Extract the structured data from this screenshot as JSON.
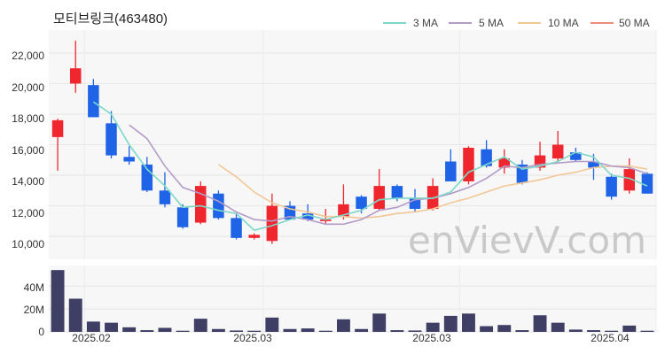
{
  "title": "모티브링크(463480)",
  "watermark": "enVievV.com",
  "colors": {
    "up": "#f0262f",
    "down": "#1f63e6",
    "volume": "#3f3f66",
    "ma3": "#7dd8c8",
    "ma5": "#b49bc8",
    "ma10": "#f2c796",
    "ma50": "#f08a7a"
  },
  "chart_data": [
    {
      "type": "candlestick",
      "legend": [
        "3 MA",
        "5 MA",
        "10 MA",
        "50 MA"
      ],
      "legend_position": "top-right",
      "x_ticks": [
        "2025.02",
        "2025.03",
        "2025.03",
        "2025.04"
      ],
      "y_ticks": [
        "10,000",
        "12,000",
        "14,000",
        "16,000",
        "18,000",
        "20,000",
        "22,000"
      ],
      "ylim": [
        8500,
        23500
      ],
      "grid": true,
      "candles": [
        {
          "o": 16500,
          "h": 17700,
          "l": 14300,
          "c": 17600
        },
        {
          "o": 20000,
          "h": 22800,
          "l": 19400,
          "c": 21000
        },
        {
          "o": 19900,
          "h": 20300,
          "l": 17800,
          "c": 17800
        },
        {
          "o": 17400,
          "h": 18200,
          "l": 15100,
          "c": 15300
        },
        {
          "o": 15200,
          "h": 15900,
          "l": 14700,
          "c": 14900
        },
        {
          "o": 14700,
          "h": 15200,
          "l": 12900,
          "c": 13000
        },
        {
          "o": 13000,
          "h": 14200,
          "l": 11900,
          "c": 12100
        },
        {
          "o": 11900,
          "h": 12100,
          "l": 10500,
          "c": 10600
        },
        {
          "o": 10900,
          "h": 13600,
          "l": 10800,
          "c": 13300
        },
        {
          "o": 12800,
          "h": 13000,
          "l": 11100,
          "c": 11200
        },
        {
          "o": 11200,
          "h": 11500,
          "l": 9800,
          "c": 9900
        },
        {
          "o": 9900,
          "h": 10200,
          "l": 9800,
          "c": 10100
        },
        {
          "o": 9700,
          "h": 12800,
          "l": 9500,
          "c": 12000
        },
        {
          "o": 12000,
          "h": 12300,
          "l": 11100,
          "c": 11100
        },
        {
          "o": 11500,
          "h": 12100,
          "l": 11000,
          "c": 11100
        },
        {
          "o": 11000,
          "h": 11800,
          "l": 10800,
          "c": 11100
        },
        {
          "o": 11300,
          "h": 13400,
          "l": 11100,
          "c": 12100
        },
        {
          "o": 12600,
          "h": 12700,
          "l": 11500,
          "c": 11800
        },
        {
          "o": 11800,
          "h": 14400,
          "l": 11700,
          "c": 13300
        },
        {
          "o": 13300,
          "h": 13400,
          "l": 12300,
          "c": 12500
        },
        {
          "o": 12500,
          "h": 13100,
          "l": 11600,
          "c": 11800
        },
        {
          "o": 11800,
          "h": 13800,
          "l": 11700,
          "c": 13300
        },
        {
          "o": 14900,
          "h": 15700,
          "l": 13600,
          "c": 13600
        },
        {
          "o": 13600,
          "h": 15900,
          "l": 13400,
          "c": 15800
        },
        {
          "o": 15700,
          "h": 16300,
          "l": 14500,
          "c": 14600
        },
        {
          "o": 14500,
          "h": 15700,
          "l": 14100,
          "c": 15100
        },
        {
          "o": 14700,
          "h": 15000,
          "l": 13400,
          "c": 13500
        },
        {
          "o": 14500,
          "h": 16200,
          "l": 14300,
          "c": 15300
        },
        {
          "o": 15100,
          "h": 16900,
          "l": 14900,
          "c": 16000
        },
        {
          "o": 15500,
          "h": 15800,
          "l": 14900,
          "c": 15000
        },
        {
          "o": 14900,
          "h": 15400,
          "l": 13700,
          "c": 14500
        },
        {
          "o": 13900,
          "h": 14100,
          "l": 12400,
          "c": 12600
        },
        {
          "o": 13000,
          "h": 15100,
          "l": 12800,
          "c": 14400
        },
        {
          "o": 14100,
          "h": 14200,
          "l": 12800,
          "c": 12800
        }
      ],
      "ma3": [
        null,
        null,
        18800,
        18000,
        16000,
        14400,
        13300,
        11900,
        12000,
        11700,
        11500,
        10400,
        10700,
        11100,
        11400,
        11100,
        11400,
        11700,
        12400,
        12500,
        12500,
        12500,
        12900,
        14200,
        14700,
        15200,
        14400,
        14600,
        14900,
        15500,
        15200,
        14000,
        13800,
        13300
      ],
      "ma5": [
        null,
        null,
        null,
        null,
        17300,
        16400,
        14600,
        13200,
        12800,
        12300,
        11600,
        11100,
        11000,
        11300,
        11100,
        10800,
        10800,
        11100,
        11700,
        11900,
        12400,
        12500,
        12800,
        13200,
        13800,
        14600,
        14500,
        14700,
        14800,
        14900,
        14900,
        14600,
        14500,
        14100
      ],
      "ma10": [
        null,
        null,
        null,
        null,
        null,
        null,
        null,
        null,
        null,
        14700,
        13900,
        12900,
        12200,
        11800,
        11600,
        11300,
        11300,
        11200,
        11300,
        11500,
        11600,
        11800,
        12200,
        12500,
        12900,
        13300,
        13500,
        13700,
        14000,
        14200,
        14500,
        14600,
        14600,
        14400
      ],
      "volume_ticks": [
        "0",
        "20M",
        "40M"
      ],
      "volume_ylim": [
        0,
        58000000
      ],
      "volumes": [
        54000000,
        29000000,
        9000000,
        8000000,
        4000000,
        1500000,
        3500000,
        1000000,
        11500000,
        2500000,
        1200000,
        1000000,
        12500000,
        2500000,
        3000000,
        1000000,
        11000000,
        2500000,
        16000000,
        1500000,
        1200000,
        8000000,
        14000000,
        16000000,
        5000000,
        6000000,
        1500000,
        14500000,
        8000000,
        2000000,
        1500000,
        1000000,
        5500000,
        1000000
      ]
    }
  ]
}
